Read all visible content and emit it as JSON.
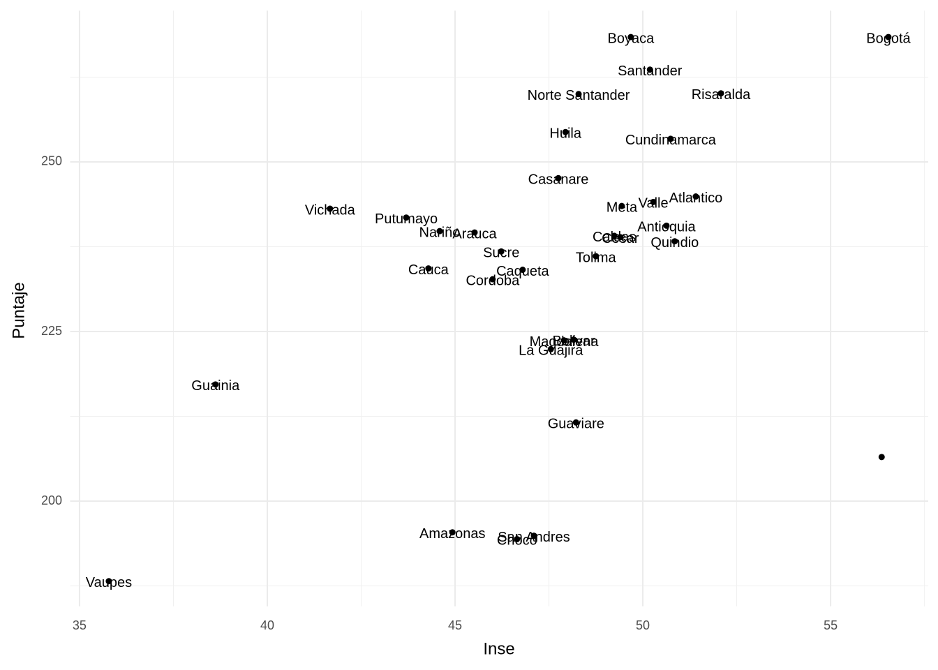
{
  "chart_data": {
    "type": "scatter",
    "xlabel": "Inse",
    "ylabel": "Puntaje",
    "labels": [
      "Boyaca",
      "Bogotá",
      "Santander",
      "Norte Santander",
      "Risaralda",
      "Huila",
      "Cundinamarca",
      "Casanare",
      "Vichada",
      "Putumayo",
      "Meta",
      "Valle",
      "Atlantico",
      "Nariño",
      "Arauca",
      "Antioquia",
      "Caldas",
      "Cesar",
      "Quindio",
      "Sucre",
      "Tolima",
      "Cauca",
      "Caqueta",
      "Cordoba",
      "Magdalena",
      "Bolivar",
      "La Guajira",
      "Guainia",
      "Guaviare",
      null,
      "Amazonas",
      "San Andres",
      "Choco",
      "Vaupes"
    ],
    "x": [
      49.68,
      56.54,
      50.19,
      48.29,
      52.08,
      47.94,
      50.74,
      47.75,
      41.67,
      43.7,
      49.44,
      50.28,
      51.41,
      44.59,
      45.52,
      50.63,
      49.24,
      49.4,
      50.85,
      46.23,
      48.75,
      44.29,
      46.8,
      46.0,
      47.9,
      48.16,
      47.55,
      38.62,
      48.22,
      56.36,
      44.93,
      47.1,
      46.65,
      35.78
    ],
    "values": [
      268.4,
      268.4,
      263.6,
      260.0,
      260.1,
      254.4,
      253.4,
      247.6,
      243.1,
      241.8,
      243.5,
      244.1,
      244.9,
      239.8,
      239.6,
      240.6,
      239.1,
      238.9,
      238.3,
      236.8,
      236.1,
      234.3,
      234.1,
      232.7,
      223.7,
      223.8,
      222.4,
      217.2,
      211.6,
      206.5,
      195.4,
      194.9,
      194.4,
      188.2
    ],
    "color": "#000000",
    "xlim": [
      34.75,
      57.6
    ],
    "ylim": [
      184.5,
      272.3
    ],
    "xticks": [
      35,
      40,
      45,
      50,
      55
    ],
    "yticks": [
      200,
      225,
      250
    ],
    "grid": true
  }
}
